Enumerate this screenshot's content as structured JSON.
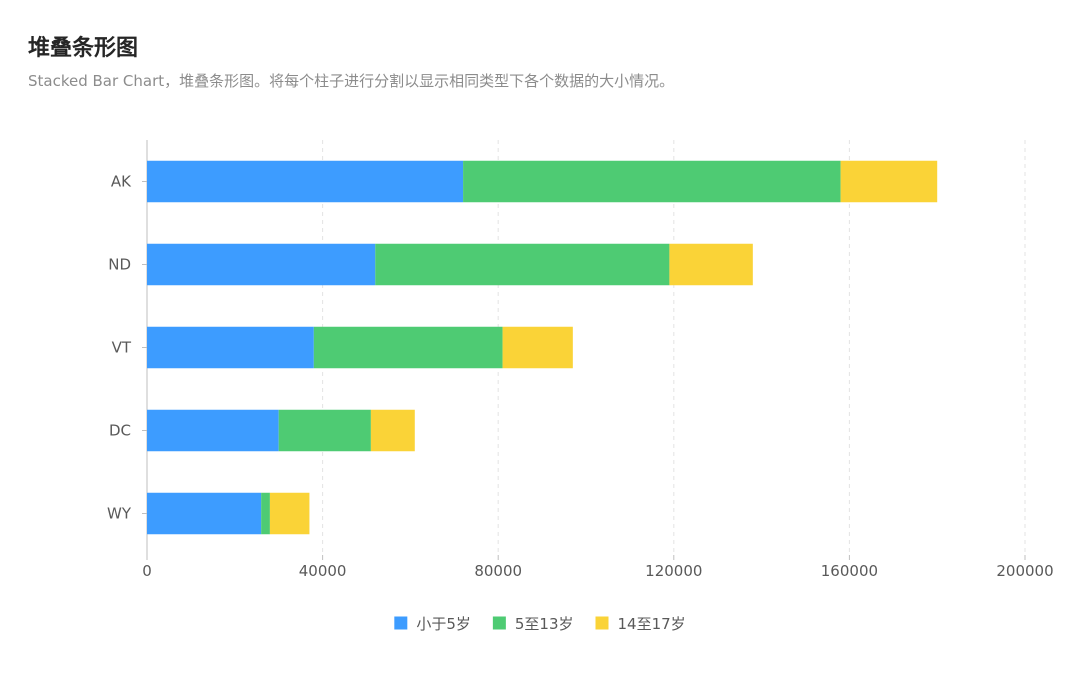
{
  "header": {
    "title": "堆叠条形图",
    "subtitle": "Stacked Bar Chart，堆叠条形图。将每个柱子进行分割以显示相同类型下各个数据的大小情况。"
  },
  "chart_data": {
    "type": "bar",
    "orientation": "horizontal",
    "stacked": true,
    "categories": [
      "AK",
      "ND",
      "VT",
      "DC",
      "WY"
    ],
    "series": [
      {
        "name": "小于5岁",
        "color": "#3d9cff",
        "values": [
          72000,
          52000,
          38000,
          30000,
          26000
        ]
      },
      {
        "name": "5至13岁",
        "color": "#4ecb73",
        "values": [
          86000,
          67000,
          43000,
          21000,
          2000
        ]
      },
      {
        "name": "14至17岁",
        "color": "#fad337",
        "values": [
          22000,
          19000,
          16000,
          10000,
          9000
        ]
      }
    ],
    "xlim": [
      0,
      200000
    ],
    "xticks": [
      "0",
      "40000",
      "80000",
      "120000",
      "160000",
      "200000"
    ],
    "grid": true,
    "legend": "bottom"
  }
}
